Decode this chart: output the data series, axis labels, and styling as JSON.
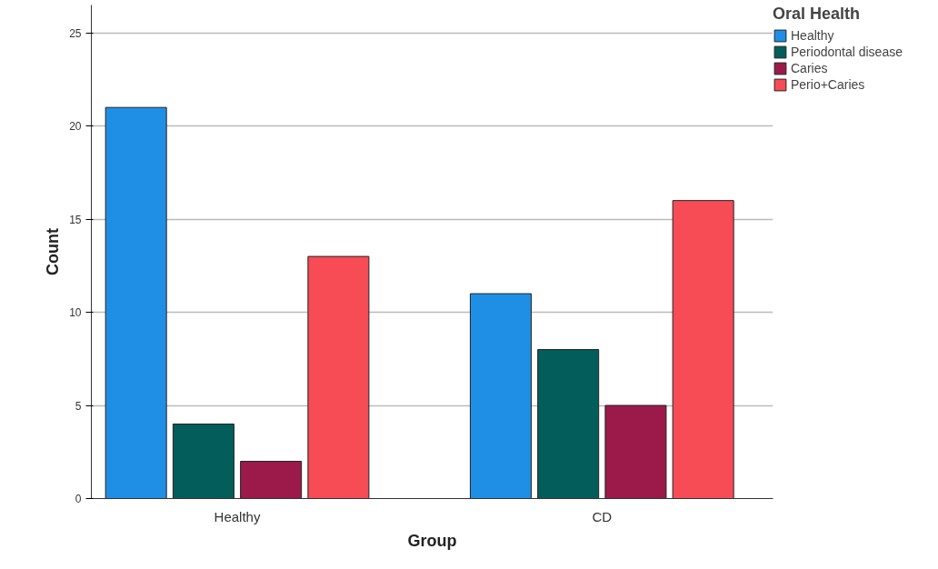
{
  "chart_data": {
    "type": "bar",
    "xlabel": "Group",
    "ylabel": "Count",
    "legend_title": "Oral Health",
    "categories": [
      "Healthy",
      "CD"
    ],
    "series": [
      {
        "name": "Healthy",
        "color": "#1f8fe6",
        "values": [
          21,
          11
        ]
      },
      {
        "name": "Periodontal disease",
        "color": "#035e5b",
        "values": [
          4,
          8
        ]
      },
      {
        "name": "Caries",
        "color": "#9c1a4a",
        "values": [
          2,
          5
        ]
      },
      {
        "name": "Perio+Caries",
        "color": "#f74b55",
        "values": [
          13,
          16
        ]
      }
    ],
    "ylim": [
      0,
      26.5
    ],
    "yticks": [
      0,
      5,
      10,
      15,
      20,
      25
    ],
    "grid": "y",
    "legend": "top right"
  }
}
